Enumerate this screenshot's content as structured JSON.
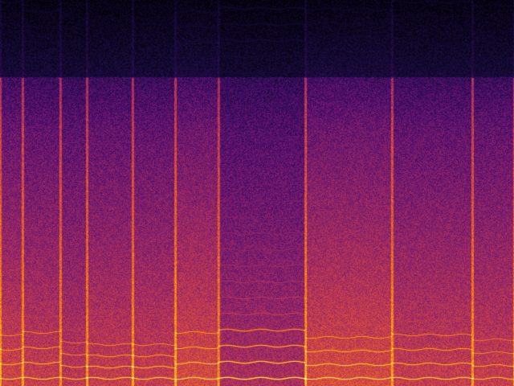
{
  "chart_data": {
    "type": "heatmap",
    "title": "",
    "xlabel": "",
    "ylabel": "",
    "colormap": "inferno",
    "colormap_stops": [
      "#000004",
      "#1b0c41",
      "#4a0c6b",
      "#781c6d",
      "#a52c60",
      "#cf4446",
      "#ed6925",
      "#fb9b06",
      "#f7d13d",
      "#fcffa4"
    ],
    "grid": false,
    "legend": "none"
  }
}
